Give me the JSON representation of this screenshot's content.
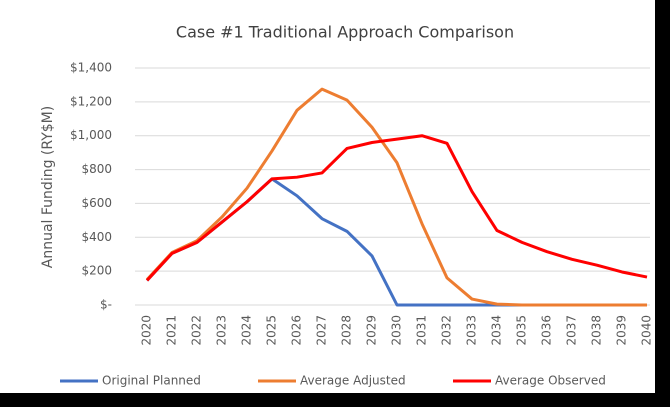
{
  "chart_data": {
    "type": "line",
    "title": "Case #1 Traditional Approach Comparison",
    "y_label": "Annual Funding (RY$M)",
    "categories": [
      "2020",
      "2021",
      "2022",
      "2023",
      "2024",
      "2025",
      "2026",
      "2027",
      "2028",
      "2029",
      "2030",
      "2031",
      "2032",
      "2033",
      "2034",
      "2035",
      "2036",
      "2037",
      "2038",
      "2039",
      "2040"
    ],
    "series": [
      {
        "name": "Original Planned",
        "color": "#4472c4",
        "values": [
          145,
          305,
          370,
          490,
          610,
          745,
          645,
          510,
          435,
          290,
          0,
          0,
          0,
          0,
          0,
          0,
          0,
          0,
          0,
          0,
          0
        ]
      },
      {
        "name": "Average Adjusted",
        "color": "#ed7d31",
        "values": [
          150,
          310,
          380,
          520,
          690,
          910,
          1150,
          1275,
          1210,
          1050,
          840,
          480,
          160,
          35,
          5,
          0,
          0,
          0,
          0,
          0,
          0
        ]
      },
      {
        "name": "Average Observed",
        "color": "#ff0000",
        "values": [
          145,
          305,
          370,
          490,
          610,
          745,
          755,
          780,
          925,
          960,
          980,
          1000,
          955,
          670,
          440,
          370,
          315,
          270,
          235,
          195,
          165
        ]
      }
    ],
    "ylim": [
      0,
      1400
    ],
    "yticks": [
      {
        "value": 0,
        "label": "$-"
      },
      {
        "value": 200,
        "label": "$200"
      },
      {
        "value": 400,
        "label": "$400"
      },
      {
        "value": 600,
        "label": "$600"
      },
      {
        "value": 800,
        "label": "$800"
      },
      {
        "value": 1000,
        "label": "$1,000"
      },
      {
        "value": 1200,
        "label": "$1,200"
      },
      {
        "value": 1400,
        "label": "$1,400"
      }
    ],
    "grid": true,
    "legend": "bottom"
  }
}
